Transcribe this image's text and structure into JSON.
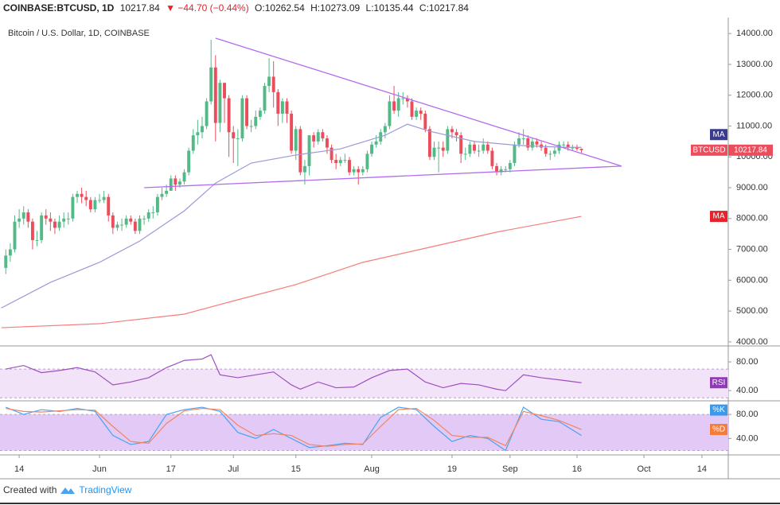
{
  "header": {
    "symbol": "COINBASE:BTCUSD, 1D",
    "last": "10217.84",
    "change": "▼ −44.70 (−0.44%)",
    "open": "O:10262.54",
    "high": "H:10273.09",
    "low": "L:10135.44",
    "close": "C:10217.84"
  },
  "footer": {
    "created": "Created with",
    "brand": "TradingView"
  },
  "chart_data": [
    {
      "type": "candlestick",
      "title": "Bitcoin / U.S. Dollar, 1D, COINBASE",
      "up_color": "#53b987",
      "down_color": "#eb4d5c",
      "x": [
        10,
        11,
        12,
        13,
        14,
        15,
        16,
        17,
        18,
        19,
        20,
        21,
        22,
        23,
        24,
        25,
        26,
        27,
        28,
        29,
        30,
        31,
        32,
        33,
        34,
        35,
        36,
        37,
        38,
        39,
        40,
        41,
        42,
        43,
        44,
        45,
        46,
        47,
        48,
        49,
        50,
        51,
        52,
        53,
        54,
        55,
        56,
        57,
        58,
        59,
        60,
        61,
        62,
        63,
        64,
        65,
        66,
        67,
        68,
        69,
        70,
        71,
        72,
        73,
        74,
        75,
        76,
        77,
        78,
        79,
        80,
        81,
        82,
        83,
        84,
        85,
        86,
        87,
        88,
        89,
        90,
        91,
        92,
        93,
        94,
        95,
        96,
        97,
        98,
        99,
        100,
        101,
        102,
        103,
        104,
        105,
        106,
        107,
        108,
        109,
        110,
        111,
        112,
        113,
        114,
        115,
        116,
        117,
        118,
        119,
        120,
        121,
        122,
        123,
        124,
        125,
        126,
        127,
        128,
        129,
        130,
        131,
        132,
        133,
        134,
        135,
        136,
        137,
        138,
        139
      ],
      "open": [
        6400,
        6800,
        7000,
        7900,
        8000,
        8200,
        7900,
        7300,
        7300,
        8100,
        8000,
        7900,
        7700,
        7900,
        8000,
        8000,
        8700,
        8800,
        8700,
        8600,
        8300,
        8600,
        8600,
        8700,
        8100,
        7700,
        7800,
        7800,
        8000,
        7900,
        7600,
        8000,
        8000,
        8200,
        8200,
        8700,
        8800,
        8900,
        9300,
        9100,
        9200,
        9500,
        10200,
        10700,
        10800,
        11000,
        11800,
        12900,
        11100,
        12400,
        11900,
        10800,
        10600,
        10600,
        11900,
        11000,
        11000,
        11300,
        11500,
        12300,
        12600,
        12100,
        11400,
        11800,
        11400,
        10200,
        10900,
        9500,
        9700,
        10700,
        10500,
        10800,
        10600,
        10300,
        9900,
        9800,
        9900,
        9900,
        9500,
        9600,
        9500,
        9600,
        10100,
        10400,
        10500,
        10800,
        11000,
        11800,
        11500,
        11900,
        11900,
        11800,
        11300,
        11500,
        11400,
        10900,
        10000,
        10300,
        10300,
        10200,
        10900,
        10800,
        10700,
        10100,
        10100,
        10400,
        10200,
        10200,
        10400,
        10200,
        9700,
        9500,
        9600,
        9600,
        9800,
        10400,
        10600,
        10600,
        10300,
        10500,
        10400,
        10300,
        10100,
        10100,
        10200,
        10400,
        10400,
        10300,
        10300,
        10262.54
      ],
      "high": [
        7000,
        7200,
        8100,
        8300,
        8400,
        8300,
        8000,
        7600,
        8200,
        8300,
        8200,
        8000,
        8100,
        8200,
        8200,
        8800,
        8900,
        9000,
        8900,
        8700,
        8700,
        8800,
        8900,
        8800,
        8200,
        7900,
        8000,
        8100,
        8100,
        8000,
        8100,
        8100,
        8300,
        8400,
        8800,
        9000,
        9100,
        9400,
        9400,
        9300,
        9600,
        10300,
        10900,
        11200,
        11300,
        11900,
        13800,
        13300,
        12500,
        12400,
        12000,
        11000,
        10900,
        12000,
        12000,
        11200,
        11500,
        11600,
        12400,
        13200,
        13100,
        12200,
        11900,
        11900,
        11500,
        11000,
        11000,
        9900,
        10700,
        10800,
        10900,
        10900,
        10700,
        10400,
        10100,
        10000,
        10100,
        10000,
        9700,
        9700,
        9700,
        10200,
        10500,
        10700,
        10900,
        11100,
        12000,
        12300,
        12100,
        12100,
        12000,
        11900,
        11600,
        11600,
        11500,
        11000,
        10500,
        10500,
        10500,
        11000,
        11000,
        10900,
        10800,
        10300,
        10500,
        10500,
        10400,
        10600,
        10500,
        10300,
        9800,
        9700,
        9700,
        9900,
        10500,
        10800,
        10900,
        10700,
        10600,
        10600,
        10500,
        10400,
        10200,
        10300,
        10500,
        10500,
        10500,
        10400,
        10400,
        10273.09
      ],
      "low": [
        6200,
        6600,
        6900,
        7700,
        7800,
        7700,
        7000,
        7100,
        7200,
        7800,
        7600,
        7500,
        7600,
        7700,
        7800,
        7900,
        8500,
        8500,
        8400,
        8200,
        8200,
        8500,
        8500,
        7900,
        7500,
        7600,
        7600,
        7700,
        7800,
        7500,
        7500,
        7800,
        7900,
        8000,
        8100,
        8600,
        8700,
        8900,
        8900,
        9000,
        9100,
        9400,
        10100,
        10400,
        10600,
        10900,
        11700,
        10500,
        10800,
        11100,
        10000,
        9800,
        9700,
        10500,
        10900,
        10800,
        10900,
        11200,
        11400,
        12100,
        11600,
        11000,
        11100,
        11100,
        10100,
        9900,
        9400,
        9100,
        9400,
        10300,
        10400,
        10500,
        10100,
        9800,
        9600,
        9700,
        9800,
        9400,
        9400,
        9100,
        9400,
        9500,
        10000,
        10300,
        10400,
        10600,
        10900,
        11400,
        11300,
        11700,
        11600,
        11200,
        11200,
        11200,
        10800,
        9900,
        9900,
        9500,
        10000,
        10100,
        10600,
        10500,
        9800,
        9900,
        10000,
        10100,
        10000,
        10100,
        10100,
        9600,
        9400,
        9400,
        9500,
        9500,
        9700,
        10300,
        10400,
        10200,
        10200,
        10300,
        10200,
        10000,
        9900,
        10000,
        10100,
        10300,
        10200,
        10200,
        10200,
        10135.44
      ],
      "close": [
        6800,
        7000,
        7900,
        8000,
        8200,
        7900,
        7300,
        7300,
        8100,
        8000,
        7900,
        7700,
        7900,
        8000,
        8000,
        8700,
        8800,
        8700,
        8600,
        8300,
        8600,
        8600,
        8700,
        8100,
        7700,
        7800,
        7800,
        8000,
        7900,
        7600,
        8000,
        8000,
        8200,
        8200,
        8700,
        8800,
        8900,
        9300,
        9100,
        9200,
        9500,
        10200,
        10700,
        10800,
        11000,
        11800,
        12900,
        11100,
        12400,
        11900,
        10800,
        10600,
        10600,
        11900,
        11000,
        11000,
        11300,
        11500,
        12300,
        12600,
        12100,
        11400,
        11800,
        11400,
        10200,
        10900,
        9500,
        9700,
        10700,
        10500,
        10800,
        10600,
        10300,
        9900,
        9800,
        9900,
        9900,
        9500,
        9600,
        9500,
        9600,
        10100,
        10400,
        10500,
        10800,
        11000,
        11800,
        11500,
        11900,
        11900,
        11800,
        11300,
        11500,
        11400,
        10900,
        10000,
        10300,
        10300,
        10200,
        10900,
        10800,
        10700,
        10100,
        10100,
        10400,
        10200,
        10200,
        10400,
        10200,
        9700,
        9500,
        9600,
        9600,
        9800,
        10400,
        10600,
        10600,
        10300,
        10500,
        10400,
        10300,
        10100,
        10100,
        10200,
        10400,
        10400,
        10300,
        10300,
        10262.54,
        10217.84
      ],
      "last_label": "BTCUSD",
      "series": [
        {
          "name": "MA",
          "color": "#9b99d6",
          "tag_color": "#3a3d8f",
          "x": [
            9,
            20,
            31,
            40,
            50,
            57,
            65,
            75,
            85,
            95,
            100,
            105,
            115,
            125,
            135,
            139
          ],
          "values": [
            5100,
            5930,
            6580,
            7270,
            8250,
            9150,
            9800,
            10060,
            10260,
            10700,
            11060,
            10830,
            10500,
            10370,
            10310,
            10310
          ]
        },
        {
          "name": "MA",
          "color": "#f77c7c",
          "tag_color": "#e8212a",
          "x": [
            9,
            31,
            50,
            60,
            75,
            90,
            105,
            120,
            139
          ],
          "values": [
            4460,
            4590,
            4900,
            5290,
            5860,
            6580,
            7070,
            7560,
            8070
          ]
        }
      ],
      "trendlines": [
        {
          "x": [
            57,
            148
          ],
          "y": [
            13850,
            9700
          ]
        },
        {
          "x": [
            41,
            148
          ],
          "y": [
            9000,
            9700
          ]
        }
      ],
      "trend_color": "#b36cf0",
      "xlim": [
        8.7,
        171.9
      ],
      "xticks": [
        {
          "value": 13,
          "label": "14"
        },
        {
          "value": 31,
          "label": "Jun"
        },
        {
          "value": 47,
          "label": "17"
        },
        {
          "value": 61,
          "label": "Jul"
        },
        {
          "value": 75,
          "label": "15"
        },
        {
          "value": 92,
          "label": "Aug"
        },
        {
          "value": 110,
          "label": "19"
        },
        {
          "value": 123,
          "label": "Sep"
        },
        {
          "value": 138,
          "label": "16"
        },
        {
          "value": 153,
          "label": "Oct"
        },
        {
          "value": 166,
          "label": "14"
        }
      ],
      "ylim": [
        3920,
        14520
      ],
      "yticks": [
        {
          "value": 4000,
          "label": "4000.00"
        },
        {
          "value": 5000,
          "label": "5000.00"
        },
        {
          "value": 6000,
          "label": "6000.00"
        },
        {
          "value": 7000,
          "label": "7000.00"
        },
        {
          "value": 8000,
          "label": "8000.00"
        },
        {
          "value": 9000,
          "label": "9000.00"
        },
        {
          "value": 10000,
          "label": "10000.00"
        },
        {
          "value": 11000,
          "label": "11000.00"
        },
        {
          "value": 12000,
          "label": "12000.00"
        },
        {
          "value": 13000,
          "label": "13000.00"
        },
        {
          "value": 14000,
          "label": "14000.00"
        }
      ]
    },
    {
      "type": "line",
      "x": [
        10,
        14,
        18,
        22,
        26,
        30,
        34,
        38,
        42,
        46,
        50,
        54,
        56,
        58,
        62,
        66,
        70,
        74,
        76,
        80,
        84,
        88,
        92,
        96,
        100,
        104,
        108,
        112,
        116,
        120,
        122,
        126,
        130,
        134,
        139
      ],
      "series": [
        {
          "name": "RSI",
          "color": "#9c4fc0",
          "tag_color": "#8e3bb5",
          "values": [
            70,
            75,
            65,
            68,
            72,
            66,
            48,
            52,
            58,
            72,
            82,
            84,
            90,
            62,
            58,
            62,
            66,
            48,
            42,
            52,
            44,
            45,
            58,
            68,
            70,
            52,
            44,
            50,
            48,
            42,
            40,
            62,
            58,
            55,
            51
          ]
        }
      ],
      "band": [
        30,
        70
      ],
      "band_color": "#f3e3f8",
      "xlim": [
        8.7,
        171.9
      ],
      "ylim": [
        28,
        100
      ],
      "yticks": [
        {
          "value": 40,
          "label": "40.00"
        },
        {
          "value": 80,
          "label": "80.00"
        }
      ]
    },
    {
      "type": "line",
      "x": [
        10,
        14,
        18,
        22,
        26,
        30,
        34,
        38,
        42,
        46,
        50,
        54,
        58,
        62,
        66,
        70,
        74,
        78,
        82,
        86,
        90,
        94,
        98,
        102,
        106,
        110,
        114,
        118,
        122,
        126,
        130,
        134,
        139
      ],
      "series": [
        {
          "name": "%K",
          "color": "#4aa3f0",
          "tag_color": "#3c98e8",
          "values": [
            92,
            80,
            88,
            85,
            90,
            85,
            45,
            30,
            35,
            80,
            88,
            92,
            85,
            50,
            40,
            55,
            40,
            25,
            28,
            32,
            30,
            75,
            92,
            88,
            60,
            35,
            45,
            40,
            20,
            92,
            72,
            68,
            45
          ]
        },
        {
          "name": "%D",
          "color": "#f4845f",
          "tag_color": "#f57c3a",
          "values": [
            90,
            85,
            84,
            86,
            88,
            87,
            60,
            35,
            32,
            65,
            86,
            90,
            88,
            62,
            45,
            48,
            45,
            30,
            27,
            30,
            31,
            60,
            88,
            90,
            70,
            45,
            42,
            42,
            28,
            85,
            78,
            70,
            55
          ]
        }
      ],
      "band": [
        20,
        80
      ],
      "band_color": "#e3c9f5",
      "xlim": [
        8.7,
        171.9
      ],
      "ylim": [
        18,
        100
      ],
      "yticks": [
        {
          "value": 40,
          "label": "40.00"
        },
        {
          "value": 80,
          "label": "80.00"
        }
      ]
    }
  ]
}
